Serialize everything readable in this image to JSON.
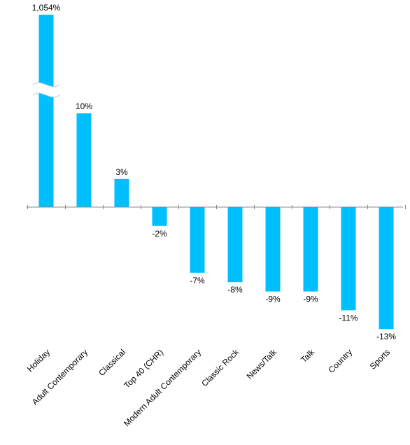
{
  "chart_data": {
    "type": "bar",
    "categories": [
      "Holiday",
      "Adult Contemporary",
      "Classical",
      "Top 40 (CHR)",
      "Modern Adult Contemporary",
      "Classic Rock",
      "News/Talk",
      "Talk",
      "Country",
      "Sports"
    ],
    "values": [
      1054,
      10,
      3,
      -2,
      -7,
      -8,
      -9,
      -9,
      -11,
      -13
    ],
    "data_labels": [
      "1,054%",
      "10%",
      "3%",
      "-2%",
      "-7%",
      "-8%",
      "-9%",
      "-9%",
      "-11%",
      "-13%"
    ],
    "title": "",
    "xlabel": "",
    "ylabel": "",
    "broken_axis_on": "Holiday",
    "colors": {
      "bar": "#00bfff",
      "axis": "#888888",
      "text": "#000000"
    },
    "grid": false,
    "legend": "none"
  }
}
